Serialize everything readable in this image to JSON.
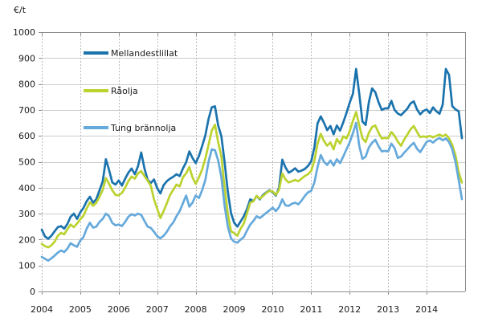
{
  "chart_data": {
    "type": "line",
    "title": "",
    "ylabel": "€/t",
    "xlabel": "",
    "frequency": "monthly",
    "x_start": "2004-01",
    "x_end": "2014-12",
    "x_tick_labels": [
      "2004",
      "2005",
      "2006",
      "2007",
      "2008",
      "2009",
      "2010",
      "2011",
      "2012",
      "2013",
      "2014"
    ],
    "ylim": [
      0,
      1000
    ],
    "y_tick_step": 100,
    "y_tick_labels": [
      "0",
      "100",
      "200",
      "300",
      "400",
      "500",
      "600",
      "700",
      "800",
      "900",
      "1000"
    ],
    "grid": {
      "horizontal": true,
      "vertical_dashed": true
    },
    "legend_position": "inside-top-left",
    "series": [
      {
        "name": "Mellandestlillat",
        "color": "#1b73ad",
        "values": [
          238,
          212,
          203,
          215,
          232,
          248,
          252,
          242,
          260,
          288,
          300,
          280,
          305,
          322,
          348,
          365,
          342,
          356,
          390,
          425,
          510,
          468,
          420,
          412,
          428,
          408,
          435,
          458,
          474,
          452,
          483,
          536,
          475,
          430,
          418,
          432,
          398,
          378,
          410,
          425,
          435,
          442,
          452,
          445,
          474,
          498,
          540,
          515,
          495,
          522,
          560,
          602,
          665,
          710,
          714,
          640,
          598,
          498,
          385,
          302,
          265,
          250,
          270,
          290,
          318,
          355,
          348,
          368,
          355,
          372,
          382,
          390,
          382,
          370,
          400,
          508,
          478,
          458,
          465,
          475,
          462,
          466,
          472,
          484,
          502,
          556,
          648,
          675,
          650,
          622,
          638,
          606,
          640,
          620,
          652,
          688,
          728,
          762,
          858,
          760,
          655,
          642,
          730,
          783,
          768,
          730,
          700,
          706,
          706,
          735,
          700,
          686,
          680,
          692,
          705,
          725,
          733,
          702,
          683,
          696,
          702,
          688,
          710,
          695,
          685,
          720,
          858,
          835,
          715,
          702,
          695,
          591
        ]
      },
      {
        "name": "Råolja",
        "color": "#bcd22f",
        "values": [
          183,
          175,
          170,
          178,
          192,
          215,
          226,
          220,
          240,
          258,
          248,
          262,
          278,
          292,
          320,
          344,
          330,
          342,
          365,
          392,
          437,
          415,
          390,
          372,
          371,
          380,
          400,
          425,
          443,
          435,
          455,
          464,
          445,
          427,
          408,
          355,
          319,
          283,
          310,
          340,
          372,
          392,
          412,
          405,
          440,
          455,
          480,
          440,
          415,
          440,
          470,
          512,
          565,
          620,
          643,
          575,
          520,
          400,
          300,
          232,
          225,
          215,
          242,
          262,
          302,
          342,
          348,
          368,
          358,
          368,
          380,
          388,
          385,
          373,
          392,
          455,
          432,
          420,
          425,
          430,
          425,
          435,
          445,
          452,
          465,
          505,
          570,
          608,
          580,
          562,
          575,
          548,
          588,
          570,
          598,
          590,
          618,
          658,
          692,
          640,
          591,
          576,
          612,
          634,
          640,
          612,
          590,
          592,
          591,
          615,
          600,
          578,
          562,
          585,
          605,
          625,
          638,
          615,
          595,
          598,
          595,
          600,
          594,
          600,
          605,
          598,
          605,
          590,
          565,
          525,
          460,
          420
        ]
      },
      {
        "name": "Tung brännolja",
        "color": "#66a9db",
        "values": [
          133,
          126,
          119,
          128,
          138,
          150,
          158,
          152,
          165,
          186,
          178,
          172,
          196,
          210,
          242,
          265,
          246,
          250,
          268,
          280,
          300,
          290,
          264,
          255,
          258,
          252,
          268,
          288,
          298,
          293,
          300,
          295,
          272,
          250,
          245,
          230,
          213,
          205,
          215,
          230,
          251,
          266,
          290,
          310,
          340,
          370,
          327,
          342,
          370,
          360,
          390,
          430,
          500,
          548,
          545,
          505,
          440,
          330,
          250,
          205,
          192,
          188,
          200,
          210,
          235,
          258,
          272,
          290,
          283,
          293,
          303,
          313,
          323,
          310,
          325,
          355,
          332,
          330,
          338,
          342,
          336,
          350,
          368,
          382,
          388,
          420,
          480,
          526,
          500,
          488,
          505,
          485,
          510,
          495,
          520,
          548,
          575,
          610,
          650,
          560,
          511,
          520,
          555,
          573,
          585,
          560,
          540,
          542,
          540,
          570,
          553,
          515,
          520,
          535,
          548,
          562,
          573,
          550,
          537,
          557,
          577,
          582,
          574,
          585,
          592,
          583,
          590,
          576,
          548,
          500,
          430,
          356
        ]
      }
    ],
    "colors": {
      "grid_horizontal": "#cccccc",
      "grid_vertical": "#b8b8b8",
      "frame": "#8c8c8c",
      "text": "#1a1a1a",
      "background": "#ffffff"
    }
  }
}
